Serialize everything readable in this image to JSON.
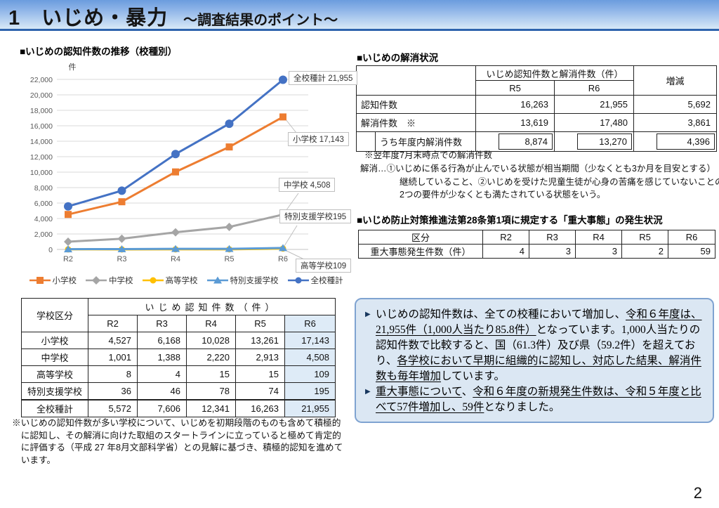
{
  "page": {
    "title_main": "1　いじめ・暴力",
    "title_sub": "～調査結果のポイント～",
    "page_number": "2"
  },
  "chart_data": {
    "type": "line",
    "title": "■いじめの認知件数の推移（校種別）",
    "unit_label": "件",
    "categories": [
      "R2",
      "R3",
      "R4",
      "R5",
      "R6"
    ],
    "ylim": [
      0,
      22000
    ],
    "ytick_step": 2000,
    "grid": true,
    "legend_position": "bottom",
    "series": [
      {
        "name": "小学校",
        "color": "#ED7D31",
        "marker": "square",
        "values": [
          4527,
          6168,
          10028,
          13261,
          17143
        ]
      },
      {
        "name": "中学校",
        "color": "#A5A5A5",
        "marker": "diamond",
        "values": [
          1001,
          1388,
          2220,
          2913,
          4508
        ]
      },
      {
        "name": "高等学校",
        "color": "#FFC000",
        "marker": "circle",
        "values": [
          8,
          4,
          15,
          15,
          109
        ]
      },
      {
        "name": "特別支援学校",
        "color": "#5B9BD5",
        "marker": "triangle",
        "values": [
          36,
          46,
          78,
          74,
          195
        ]
      },
      {
        "name": "全校種計",
        "color": "#4472C4",
        "marker": "circle",
        "values": [
          5572,
          7606,
          12341,
          16263,
          21955
        ]
      }
    ],
    "annotations": [
      "全校種計 21,955",
      "小学校 17,143",
      "中学校 4,508",
      "特別支援学校195",
      "高等学校109"
    ]
  },
  "left": {
    "chart_section_title": "■いじめの認知件数の推移（校種別）",
    "school_table": {
      "corner_header": "学校区分",
      "group_header": "いじめ認知件数（件）",
      "years": [
        "R2",
        "R3",
        "R4",
        "R5",
        "R6"
      ],
      "rows": [
        {
          "label": "小学校",
          "values": [
            "4,527",
            "6,168",
            "10,028",
            "13,261",
            "17,143"
          ]
        },
        {
          "label": "中学校",
          "values": [
            "1,001",
            "1,388",
            "2,220",
            "2,913",
            "4,508"
          ]
        },
        {
          "label": "高等学校",
          "values": [
            "8",
            "4",
            "15",
            "15",
            "109"
          ]
        },
        {
          "label": "特別支援学校",
          "values": [
            "36",
            "46",
            "78",
            "74",
            "195"
          ]
        },
        {
          "label": "全校種計",
          "values": [
            "5,572",
            "7,606",
            "12,341",
            "16,263",
            "21,955"
          ]
        }
      ]
    },
    "bottom_note": "※いじめの認知件数が多い学校について、いじめを初期段階のものも含めて積極的に認知し、その解消に向けた取組のスタートラインに立っていると極めて肯定的に評価する（平成 27 年8月文部科学省）との見解に基づき、積極的認知を進めています。"
  },
  "right": {
    "resolution_section_title": "■いじめの解消状況",
    "resolution_table": {
      "group_header": "いじめ認知件数と解消件数（件）",
      "col_r5": "R5",
      "col_r6": "R6",
      "col_change": "増減",
      "rows": [
        {
          "label": "認知件数",
          "r5": "16,263",
          "r6": "21,955",
          "change": "5,692"
        },
        {
          "label": "解消件数　※",
          "r5": "13,619",
          "r6": "17,480",
          "change": "3,861"
        },
        {
          "label": "うち年度内解消件数",
          "r5": "8,874",
          "r6": "13,270",
          "change": "4,396"
        }
      ]
    },
    "resolution_notes": {
      "line1": "※翌年度7月末時点での解消件数",
      "line2": "解消…①いじめに係る行為が止んでいる状態が相当期間（少なくとも3か月を目安とする）",
      "line3": "継続していること、②いじめを受けた児童生徒が心身の苦痛を感じていないことの",
      "line4": "2つの要件が少なくとも満たされている状態をいう。"
    },
    "serious_section_title": "■いじめ防止対策推進法第28条第1項に規定する「重大事態」の発生状況",
    "serious_table": {
      "col_label": "区分",
      "years": [
        "R2",
        "R3",
        "R4",
        "R5",
        "R6"
      ],
      "row_label": "重大事態発生件数（件）",
      "values": [
        "4",
        "3",
        "3",
        "2",
        "59"
      ]
    },
    "summary_box": {
      "bullets": [
        {
          "segments": [
            {
              "t": "いじめの認知件数は、全ての校種において増加し、"
            },
            {
              "t": "令和６年度は、21,955件（1,000人当たり85.8件）",
              "u": true
            },
            {
              "t": "となっています。1,000人当たりの認知件数で比較すると、国（61.3件）及び県（59.2件）を超えており、"
            },
            {
              "t": "各学校において早期に組織的に認知し、対応した結果、解消件数も毎年増加",
              "u": true
            },
            {
              "t": "しています。"
            }
          ]
        },
        {
          "segments": [
            {
              "t": "重大事態について",
              "u": true
            },
            {
              "t": "、"
            },
            {
              "t": "令和６年度の新規発生件数は、令和５年度と比べて57件増加し、59件",
              "u": true
            },
            {
              "t": "となりました。"
            }
          ]
        }
      ]
    }
  }
}
